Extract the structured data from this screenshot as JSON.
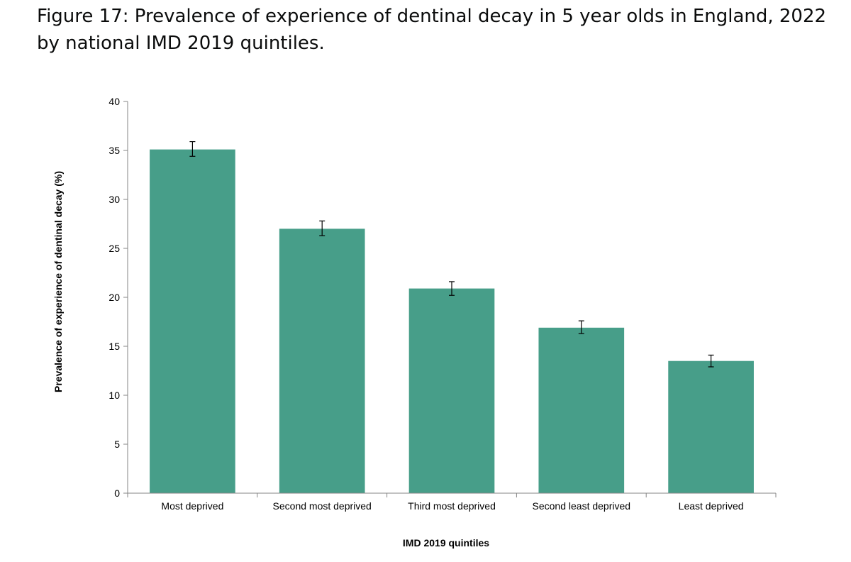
{
  "figure": {
    "title": "Figure 17: Prevalence of experience of dentinal decay in 5 year olds in England, 2022 by national IMD 2019 quintiles."
  },
  "chart_data": {
    "type": "bar",
    "categories": [
      "Most deprived",
      "Second most deprived",
      "Third most deprived",
      "Second least deprived",
      "Least deprived"
    ],
    "values": [
      35.1,
      27.0,
      20.9,
      16.9,
      13.5
    ],
    "error_low": [
      34.4,
      26.3,
      20.2,
      16.3,
      12.9
    ],
    "error_high": [
      35.9,
      27.8,
      21.6,
      17.6,
      14.1
    ],
    "ylim": [
      0,
      40
    ],
    "yticks": [
      0,
      5,
      10,
      15,
      20,
      25,
      30,
      35,
      40
    ],
    "xlabel": "IMD 2019 quintiles",
    "ylabel": "Prevalence of experience of dentinal decay (%)",
    "bar_color": "#479e89",
    "grid": false,
    "legend": "none"
  }
}
